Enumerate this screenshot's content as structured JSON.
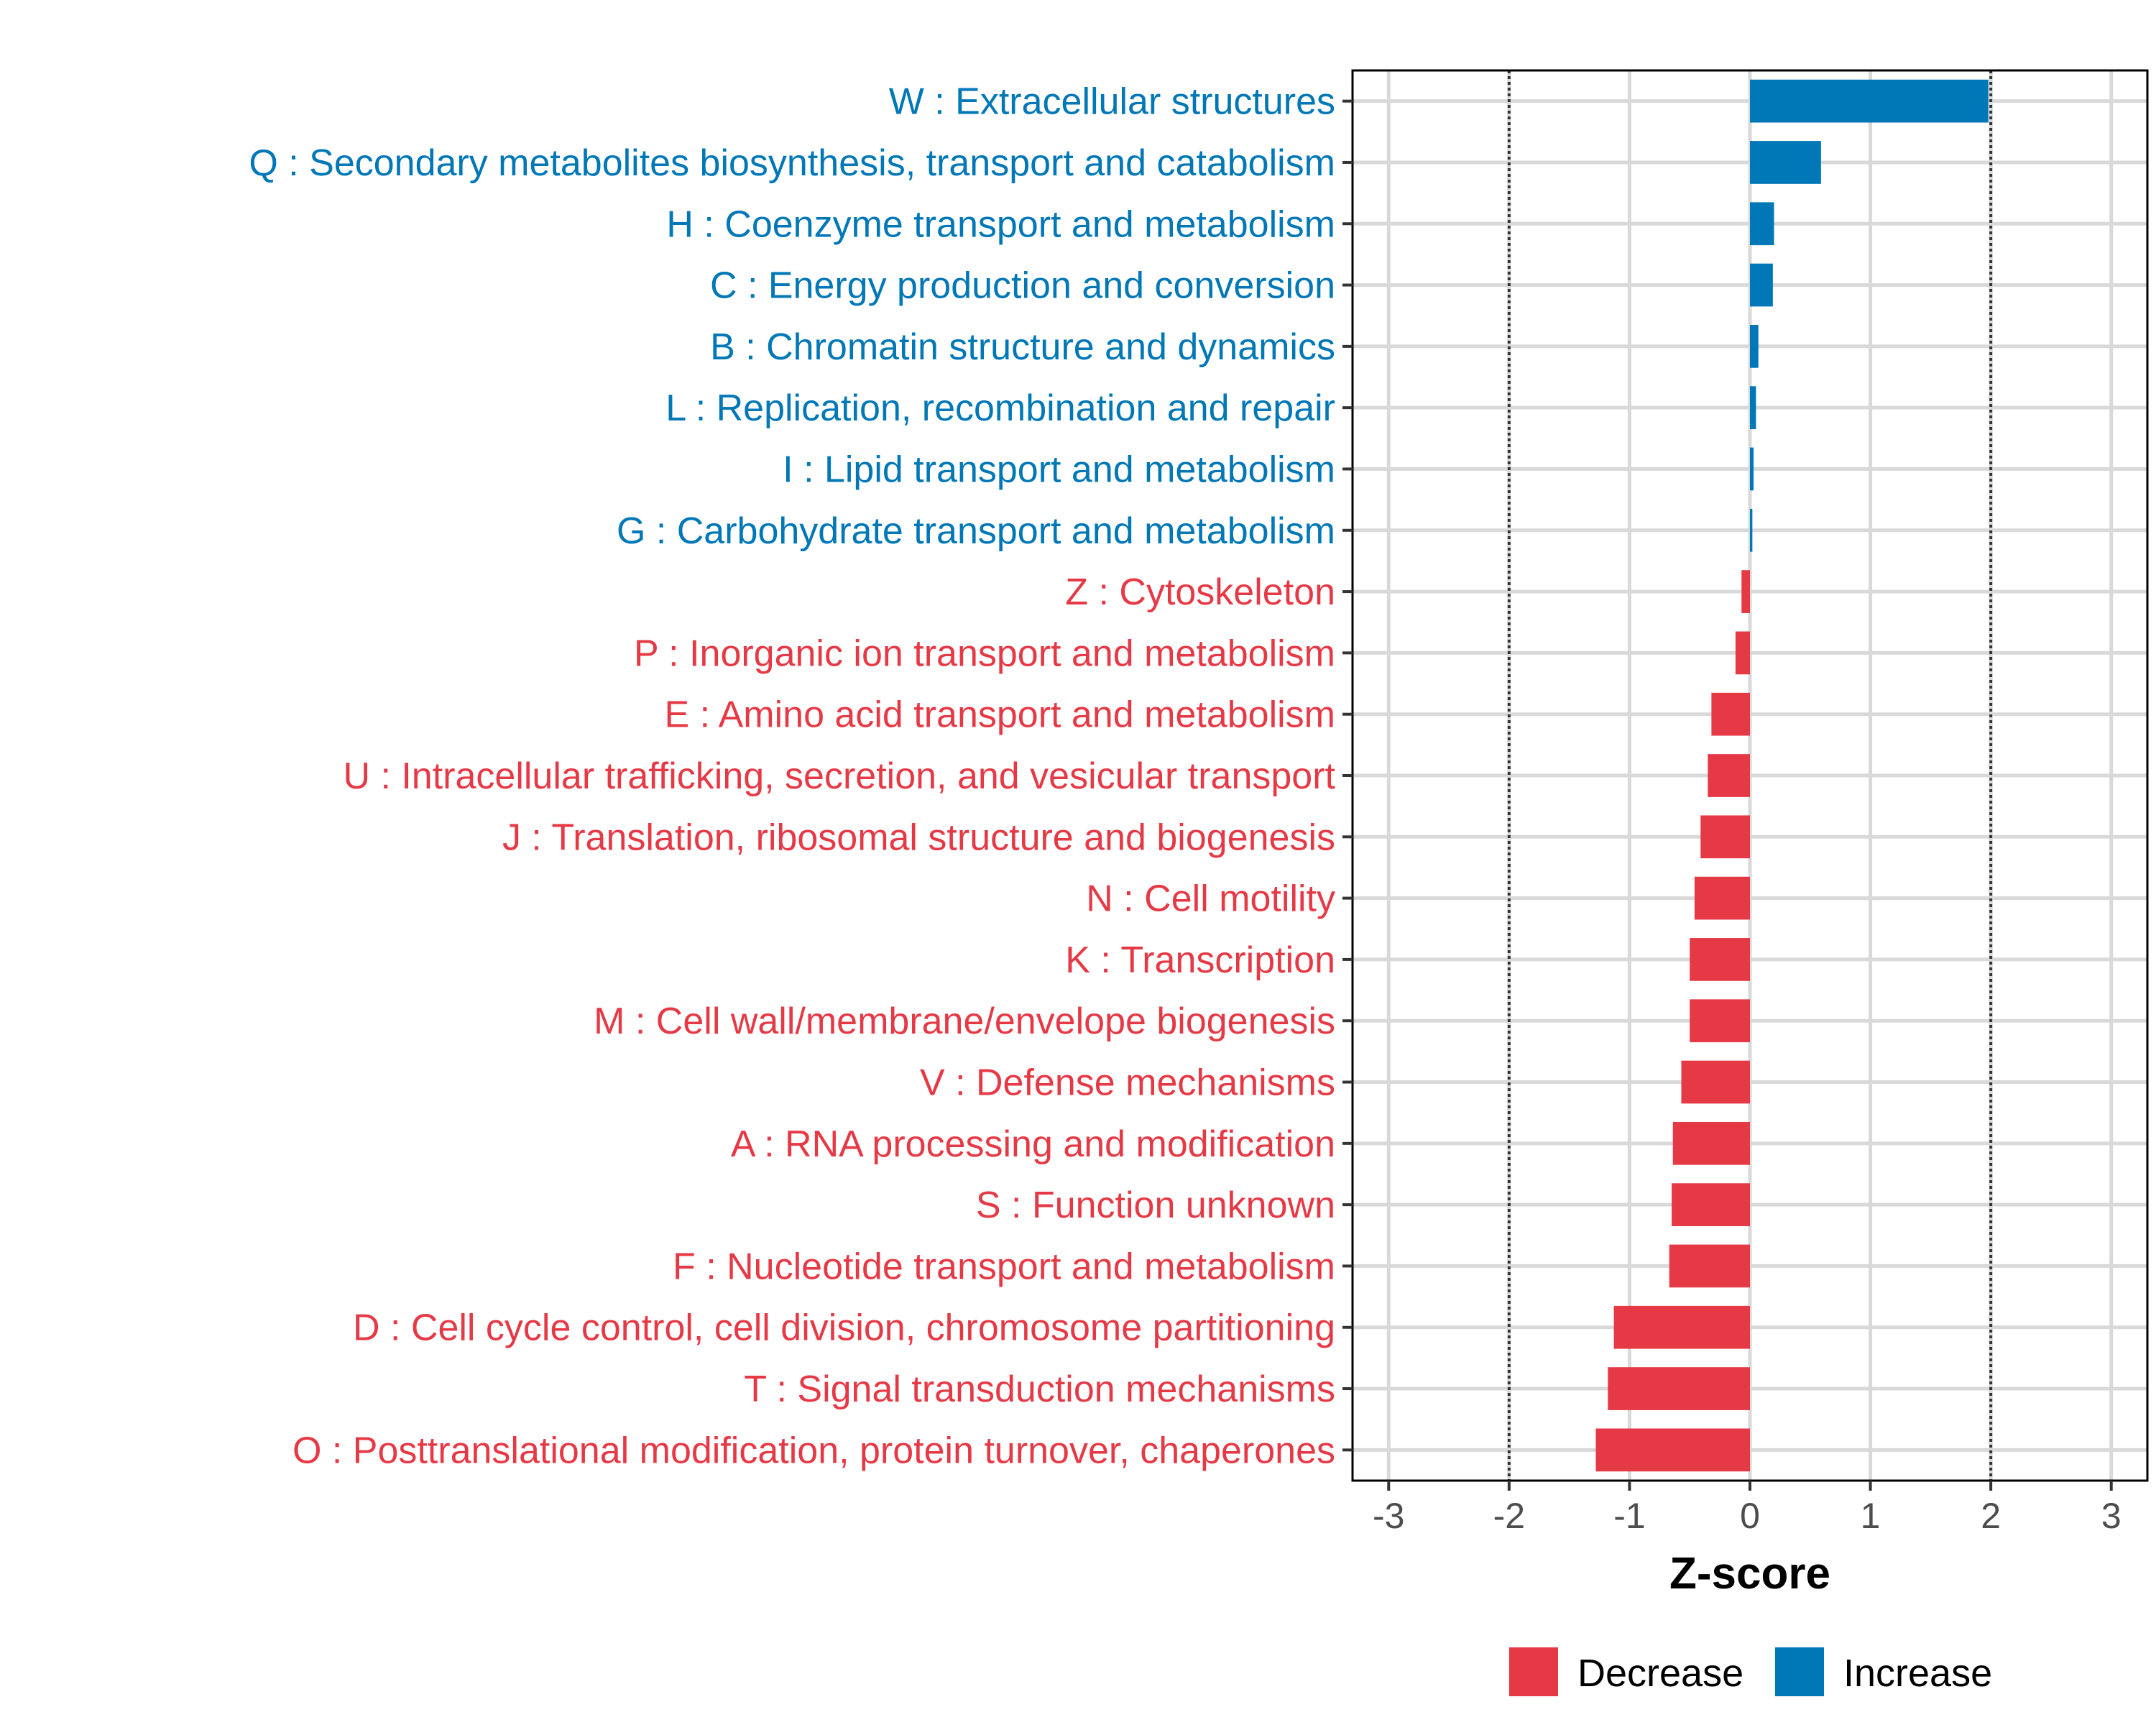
{
  "chart_data": {
    "type": "bar",
    "orientation": "horizontal",
    "title": "",
    "xlabel": "Z-score",
    "ylabel": "",
    "xlim": [
      -3.3,
      3.3
    ],
    "xticks": [
      -3,
      -2,
      -1,
      0,
      1,
      2,
      3
    ],
    "xtick_labels": [
      "-3",
      "-2",
      "-1",
      "0",
      "1",
      "2",
      "3"
    ],
    "reference_lines": [
      -2,
      2
    ],
    "grid": true,
    "categories": [
      "W : Extracellular structures",
      "Q : Secondary metabolites biosynthesis, transport and catabolism",
      "H : Coenzyme transport and metabolism",
      "C : Energy production and conversion",
      "B : Chromatin structure and dynamics",
      "L : Replication, recombination and repair",
      "I : Lipid transport and metabolism",
      "G : Carbohydrate transport and metabolism",
      "Z : Cytoskeleton",
      "P : Inorganic ion transport and metabolism",
      "E : Amino acid transport and metabolism",
      "U : Intracellular trafficking, secretion, and vesicular transport",
      "J : Translation, ribosomal structure and biogenesis",
      "N : Cell motility",
      "K : Transcription",
      "M : Cell wall/membrane/envelope biogenesis",
      "V : Defense mechanisms",
      "A : RNA processing and modification",
      "S : Function unknown",
      "F : Nucleotide transport and metabolism",
      "D : Cell cycle control, cell division, chromosome partitioning",
      "T : Signal transduction mechanisms",
      "O : Posttranslational modification, protein turnover, chaperones"
    ],
    "values": [
      1.98,
      0.59,
      0.2,
      0.19,
      0.07,
      0.05,
      0.03,
      0.02,
      -0.07,
      -0.12,
      -0.32,
      -0.35,
      -0.41,
      -0.46,
      -0.5,
      -0.5,
      -0.57,
      -0.64,
      -0.65,
      -0.67,
      -1.13,
      -1.18,
      -1.28
    ],
    "legend": {
      "placement": "bottom",
      "entries": [
        {
          "name": "Decrease",
          "color": "#E63946"
        },
        {
          "name": "Increase",
          "color": "#0077B6"
        }
      ]
    },
    "colors": {
      "increase": "#0077B6",
      "decrease": "#E63946"
    }
  }
}
